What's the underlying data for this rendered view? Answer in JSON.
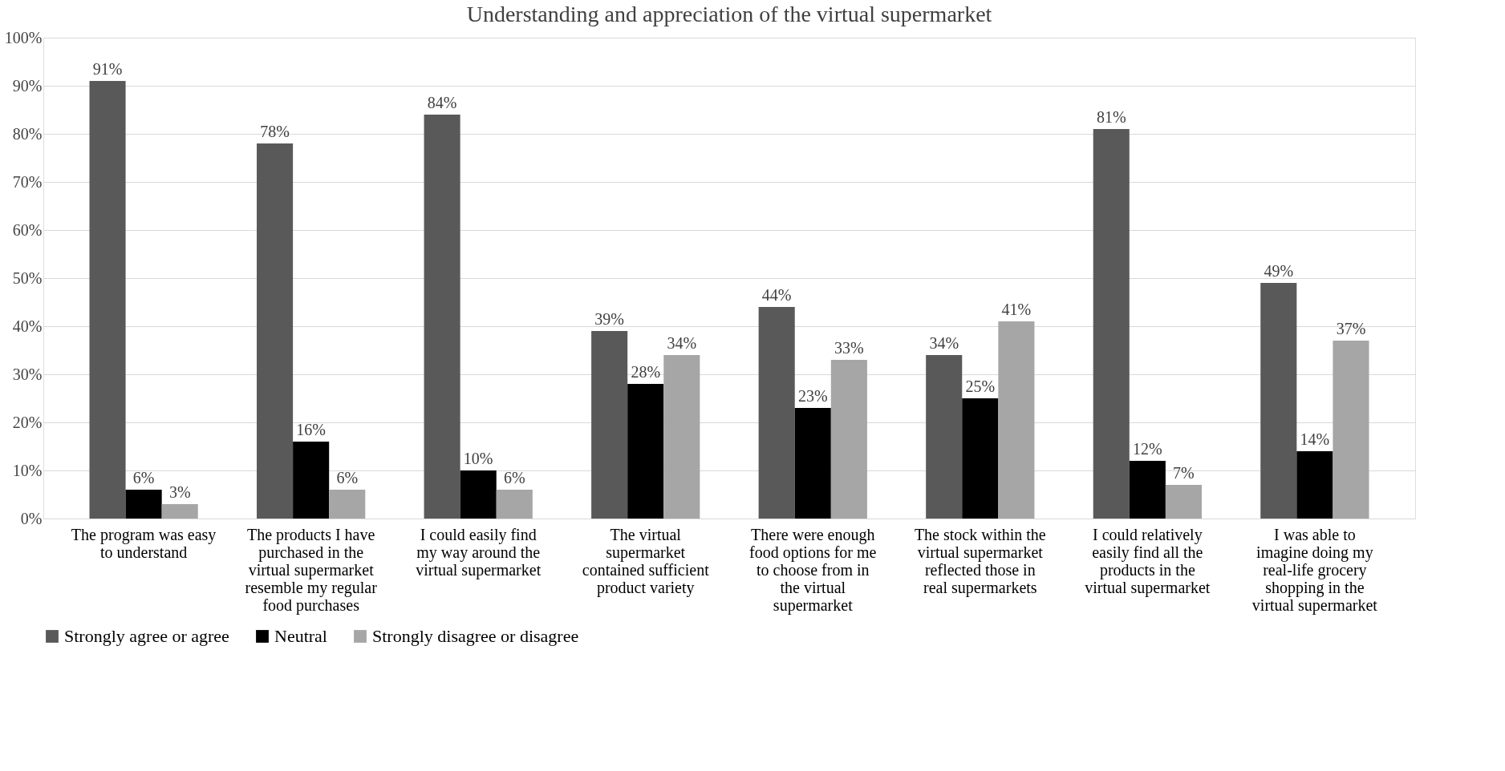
{
  "chart_data": {
    "type": "bar",
    "title": "Understanding and appreciation of the virtual supermarket",
    "categories": [
      "The program was easy to understand",
      "The products I have purchased in the virtual supermarket resemble my regular food purchases",
      "I could easily find my way around the virtual supermarket",
      "The virtual supermarket contained sufficient product variety",
      "There were enough food options for me to choose from in the virtual supermarket",
      "The stock within the virtual supermarket reflected those in real supermarkets",
      "I could relatively easily find all the products in the virtual supermarket",
      "I was able to imagine doing my real-life grocery shopping in the virtual supermarket"
    ],
    "series": [
      {
        "name": "Strongly agree or agree",
        "color": "#595959",
        "values": [
          91,
          78,
          84,
          39,
          44,
          34,
          81,
          49
        ],
        "value_labels": [
          "91%",
          "78%",
          "84%",
          "39%",
          "44%",
          "34%",
          "81%",
          "49%"
        ]
      },
      {
        "name": "Neutral",
        "color": "#000000",
        "values": [
          6,
          16,
          10,
          28,
          23,
          25,
          12,
          14
        ],
        "value_labels": [
          "6%",
          "16%",
          "10%",
          "28%",
          "23%",
          "25%",
          "12%",
          "14%"
        ]
      },
      {
        "name": "Strongly disagree or disagree",
        "color": "#a6a6a6",
        "values": [
          3,
          6,
          6,
          34,
          33,
          41,
          7,
          37
        ],
        "value_labels": [
          "3%",
          "6%",
          "6%",
          "34%",
          "33%",
          "41%",
          "7%",
          "37%"
        ]
      }
    ],
    "ylim": [
      0,
      100
    ],
    "yticks": [
      {
        "value": 0,
        "label": "0%"
      },
      {
        "value": 10,
        "label": "10%"
      },
      {
        "value": 20,
        "label": "20%"
      },
      {
        "value": 30,
        "label": "30%"
      },
      {
        "value": 40,
        "label": "40%"
      },
      {
        "value": 50,
        "label": "50%"
      },
      {
        "value": 60,
        "label": "60%"
      },
      {
        "value": 70,
        "label": "70%"
      },
      {
        "value": 80,
        "label": "80%"
      },
      {
        "value": 90,
        "label": "90%"
      },
      {
        "value": 100,
        "label": "100%"
      }
    ],
    "grid": "y",
    "legend": "bottom"
  }
}
